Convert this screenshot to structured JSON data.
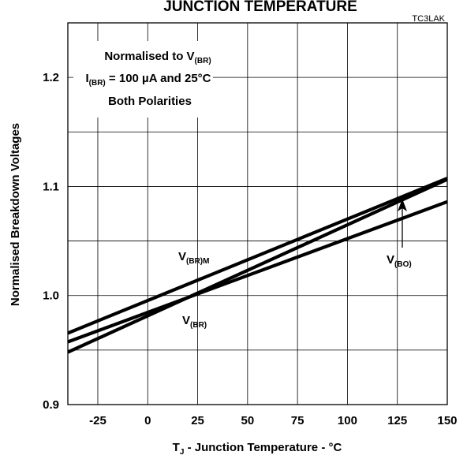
{
  "chart_data": {
    "type": "line",
    "title": "JUNCTION TEMPERATURE",
    "figure_code": "TC3LAK",
    "xlabel": {
      "main": "T",
      "sub": "J",
      "rest": " - Junction Temperature - °C"
    },
    "ylabel": "Normalised Breakdown Voltages",
    "xlim": [
      -40,
      150
    ],
    "ylim": [
      0.9,
      1.25
    ],
    "xticks": [
      -25,
      0,
      25,
      50,
      75,
      100,
      125,
      150
    ],
    "xtick_labels": [
      "-25",
      "0",
      "25",
      "50",
      "75",
      "100",
      "125",
      "150"
    ],
    "yticks": [
      0.9,
      1.0,
      1.1,
      1.2
    ],
    "ytick_labels": [
      "0.9",
      "1.0",
      "1.1",
      "1.2"
    ],
    "grid": true,
    "legend_box": {
      "line1": {
        "text": "Normalised to V",
        "sub": "(BR)"
      },
      "line2": {
        "pre": "I",
        "sub": "(BR)",
        "post": " = 100 µA and 25°C"
      },
      "line3": "Both Polarities"
    },
    "series": [
      {
        "name_main": "V",
        "name_sub": "(BR)M",
        "x": [
          -40,
          150
        ],
        "y": [
          0.9655,
          1.1075
        ]
      },
      {
        "name_main": "V",
        "name_sub": "(BR)",
        "x": [
          -40,
          150
        ],
        "y": [
          0.948,
          1.1065
        ]
      },
      {
        "name_main": "V",
        "name_sub": "(BO)",
        "x": [
          -40,
          150
        ],
        "y": [
          0.9575,
          1.086
        ]
      }
    ]
  }
}
